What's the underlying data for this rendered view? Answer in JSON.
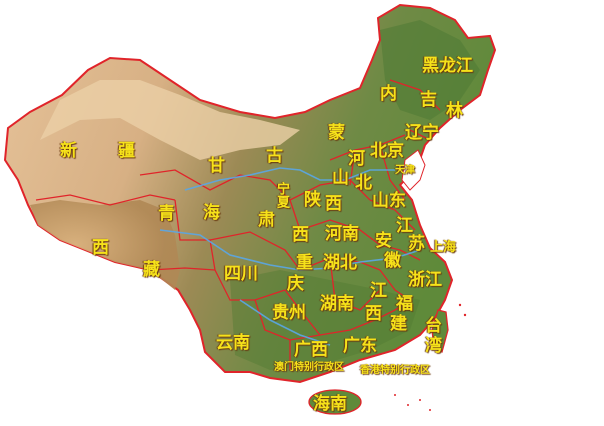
{
  "map": {
    "colors": {
      "border": "#e0242a",
      "mountain": "#3f6b2c",
      "plateau": "#c8a271",
      "desert": "#e7c9a0",
      "river": "#5aa7e6",
      "label": "#f6e21a"
    },
    "labels": {
      "heilongjiang": "黑龙江",
      "neimenggu_1": "内",
      "neimenggu_2": "蒙",
      "neimenggu_3": "古",
      "jilin_1": "吉",
      "jilin_2": "林",
      "liaoning": "辽宁",
      "beijing": "北京",
      "tianjin": "天津",
      "hebei_1": "河",
      "hebei_2": "北",
      "shanxi_1": "山",
      "shanxi_2": "西",
      "shandong": "山东",
      "xinjiang_1": "新",
      "xinjiang_2": "疆",
      "gansu_1": "甘",
      "gansu_2": "肃",
      "ningxia": "宁夏",
      "qinghai_1": "青",
      "qinghai_2": "海",
      "shaanxi_1": "陕",
      "shaanxi_2": "西",
      "henan": "河南",
      "jiangsu_1": "江",
      "jiangsu_2": "苏",
      "shanghai": "上海",
      "anhui_1": "安",
      "anhui_2": "徽",
      "xizang_1": "西",
      "xizang_2": "藏",
      "sichuan": "四川",
      "chongqing_1": "重",
      "chongqing_2": "庆",
      "hubei": "湖北",
      "zhejiang": "浙江",
      "hunan": "湖南",
      "jiangxi_1": "江",
      "jiangxi_2": "西",
      "fujian_1": "福",
      "fujian_2": "建",
      "guizhou": "贵州",
      "yunnan": "云南",
      "guangxi": "广西",
      "guangdong": "广东",
      "taiwan_1": "台",
      "taiwan_2": "湾",
      "macau": "澳门特别行政区",
      "hongkong": "香港特别行政区",
      "hainan": "海南"
    }
  }
}
